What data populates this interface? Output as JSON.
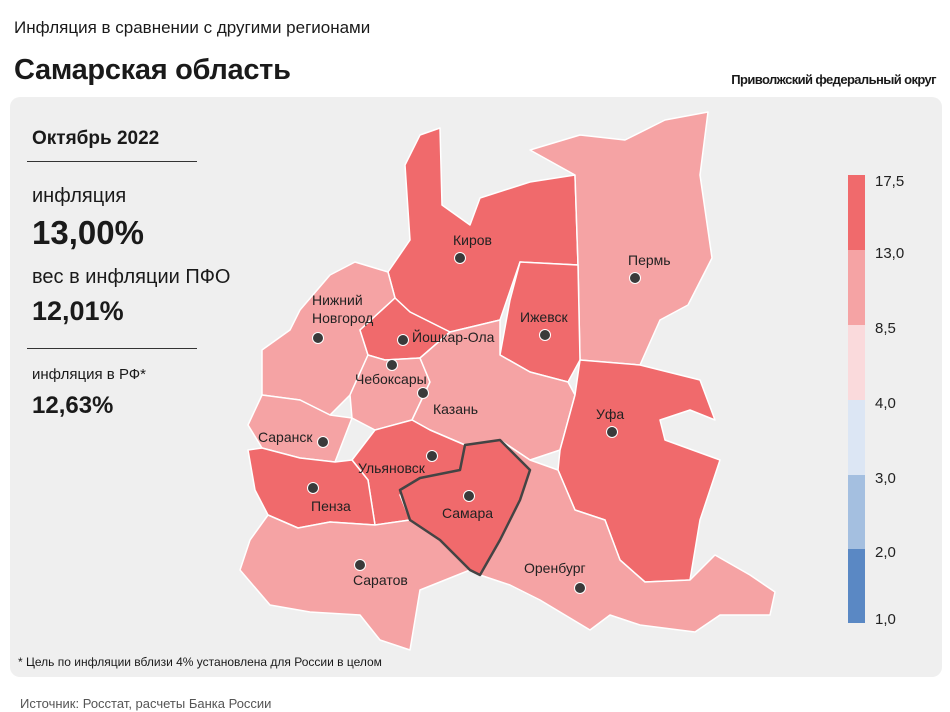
{
  "header": {
    "supertitle": "Инфляция в сравнении с другими регионами",
    "title": "Самарская область",
    "district": "Приволжский федеральный округ"
  },
  "info": {
    "period": "Октябрь 2022",
    "inflation_label": "инфляция",
    "inflation_value": "13,00%",
    "weight_label": "вес в инфляции ПФО",
    "weight_value": "12,01%",
    "rf_label": "инфляция в РФ*",
    "rf_value": "12,63%"
  },
  "footnote": "* Цель по инфляции вблизи 4% установлена для России в целом",
  "source": "Источник: Росстат, расчеты Банка России",
  "legend": {
    "ticks": [
      "17,5",
      "13,0",
      "8,5",
      "4,0",
      "3,0",
      "2,0",
      "1,0"
    ],
    "colors": [
      "#f06a6c",
      "#f5a3a4",
      "#fadadc",
      "#dce6f4",
      "#a4bfe0",
      "#5a88c4"
    ]
  },
  "regions": [
    {
      "name": "Киров",
      "color": "#f06a6c"
    },
    {
      "name": "Пермь",
      "color": "#f5a3a4"
    },
    {
      "name": "Нижний Новгород",
      "color": "#f5a3a4"
    },
    {
      "name": "Йошкар-Ола",
      "color": "#f06a6c"
    },
    {
      "name": "Ижевск",
      "color": "#f06a6c"
    },
    {
      "name": "Чебоксары",
      "color": "#f5a3a4"
    },
    {
      "name": "Казань",
      "color": "#f5a3a4"
    },
    {
      "name": "Уфа",
      "color": "#f06a6c"
    },
    {
      "name": "Саранск",
      "color": "#f5a3a4"
    },
    {
      "name": "Ульяновск",
      "color": "#f06a6c"
    },
    {
      "name": "Пенза",
      "color": "#f06a6c"
    },
    {
      "name": "Самара",
      "color": "#f5a3a4"
    },
    {
      "name": "Саратов",
      "color": "#f5a3a4"
    },
    {
      "name": "Оренбург",
      "color": "#f06a6c"
    }
  ],
  "cities": {
    "kirov": "Киров",
    "perm": "Пермь",
    "nn_line1": "Нижний",
    "nn_line2": "Новгород",
    "yoshkar": "Йошкар-Ола",
    "izhevsk": "Ижевск",
    "cheboksary": "Чебоксары",
    "kazan": "Казань",
    "ufa": "Уфа",
    "saransk": "Саранск",
    "ulyanovsk": "Ульяновск",
    "penza": "Пенза",
    "samara": "Самара",
    "saratov": "Саратов",
    "orenburg": "Оренбург"
  }
}
